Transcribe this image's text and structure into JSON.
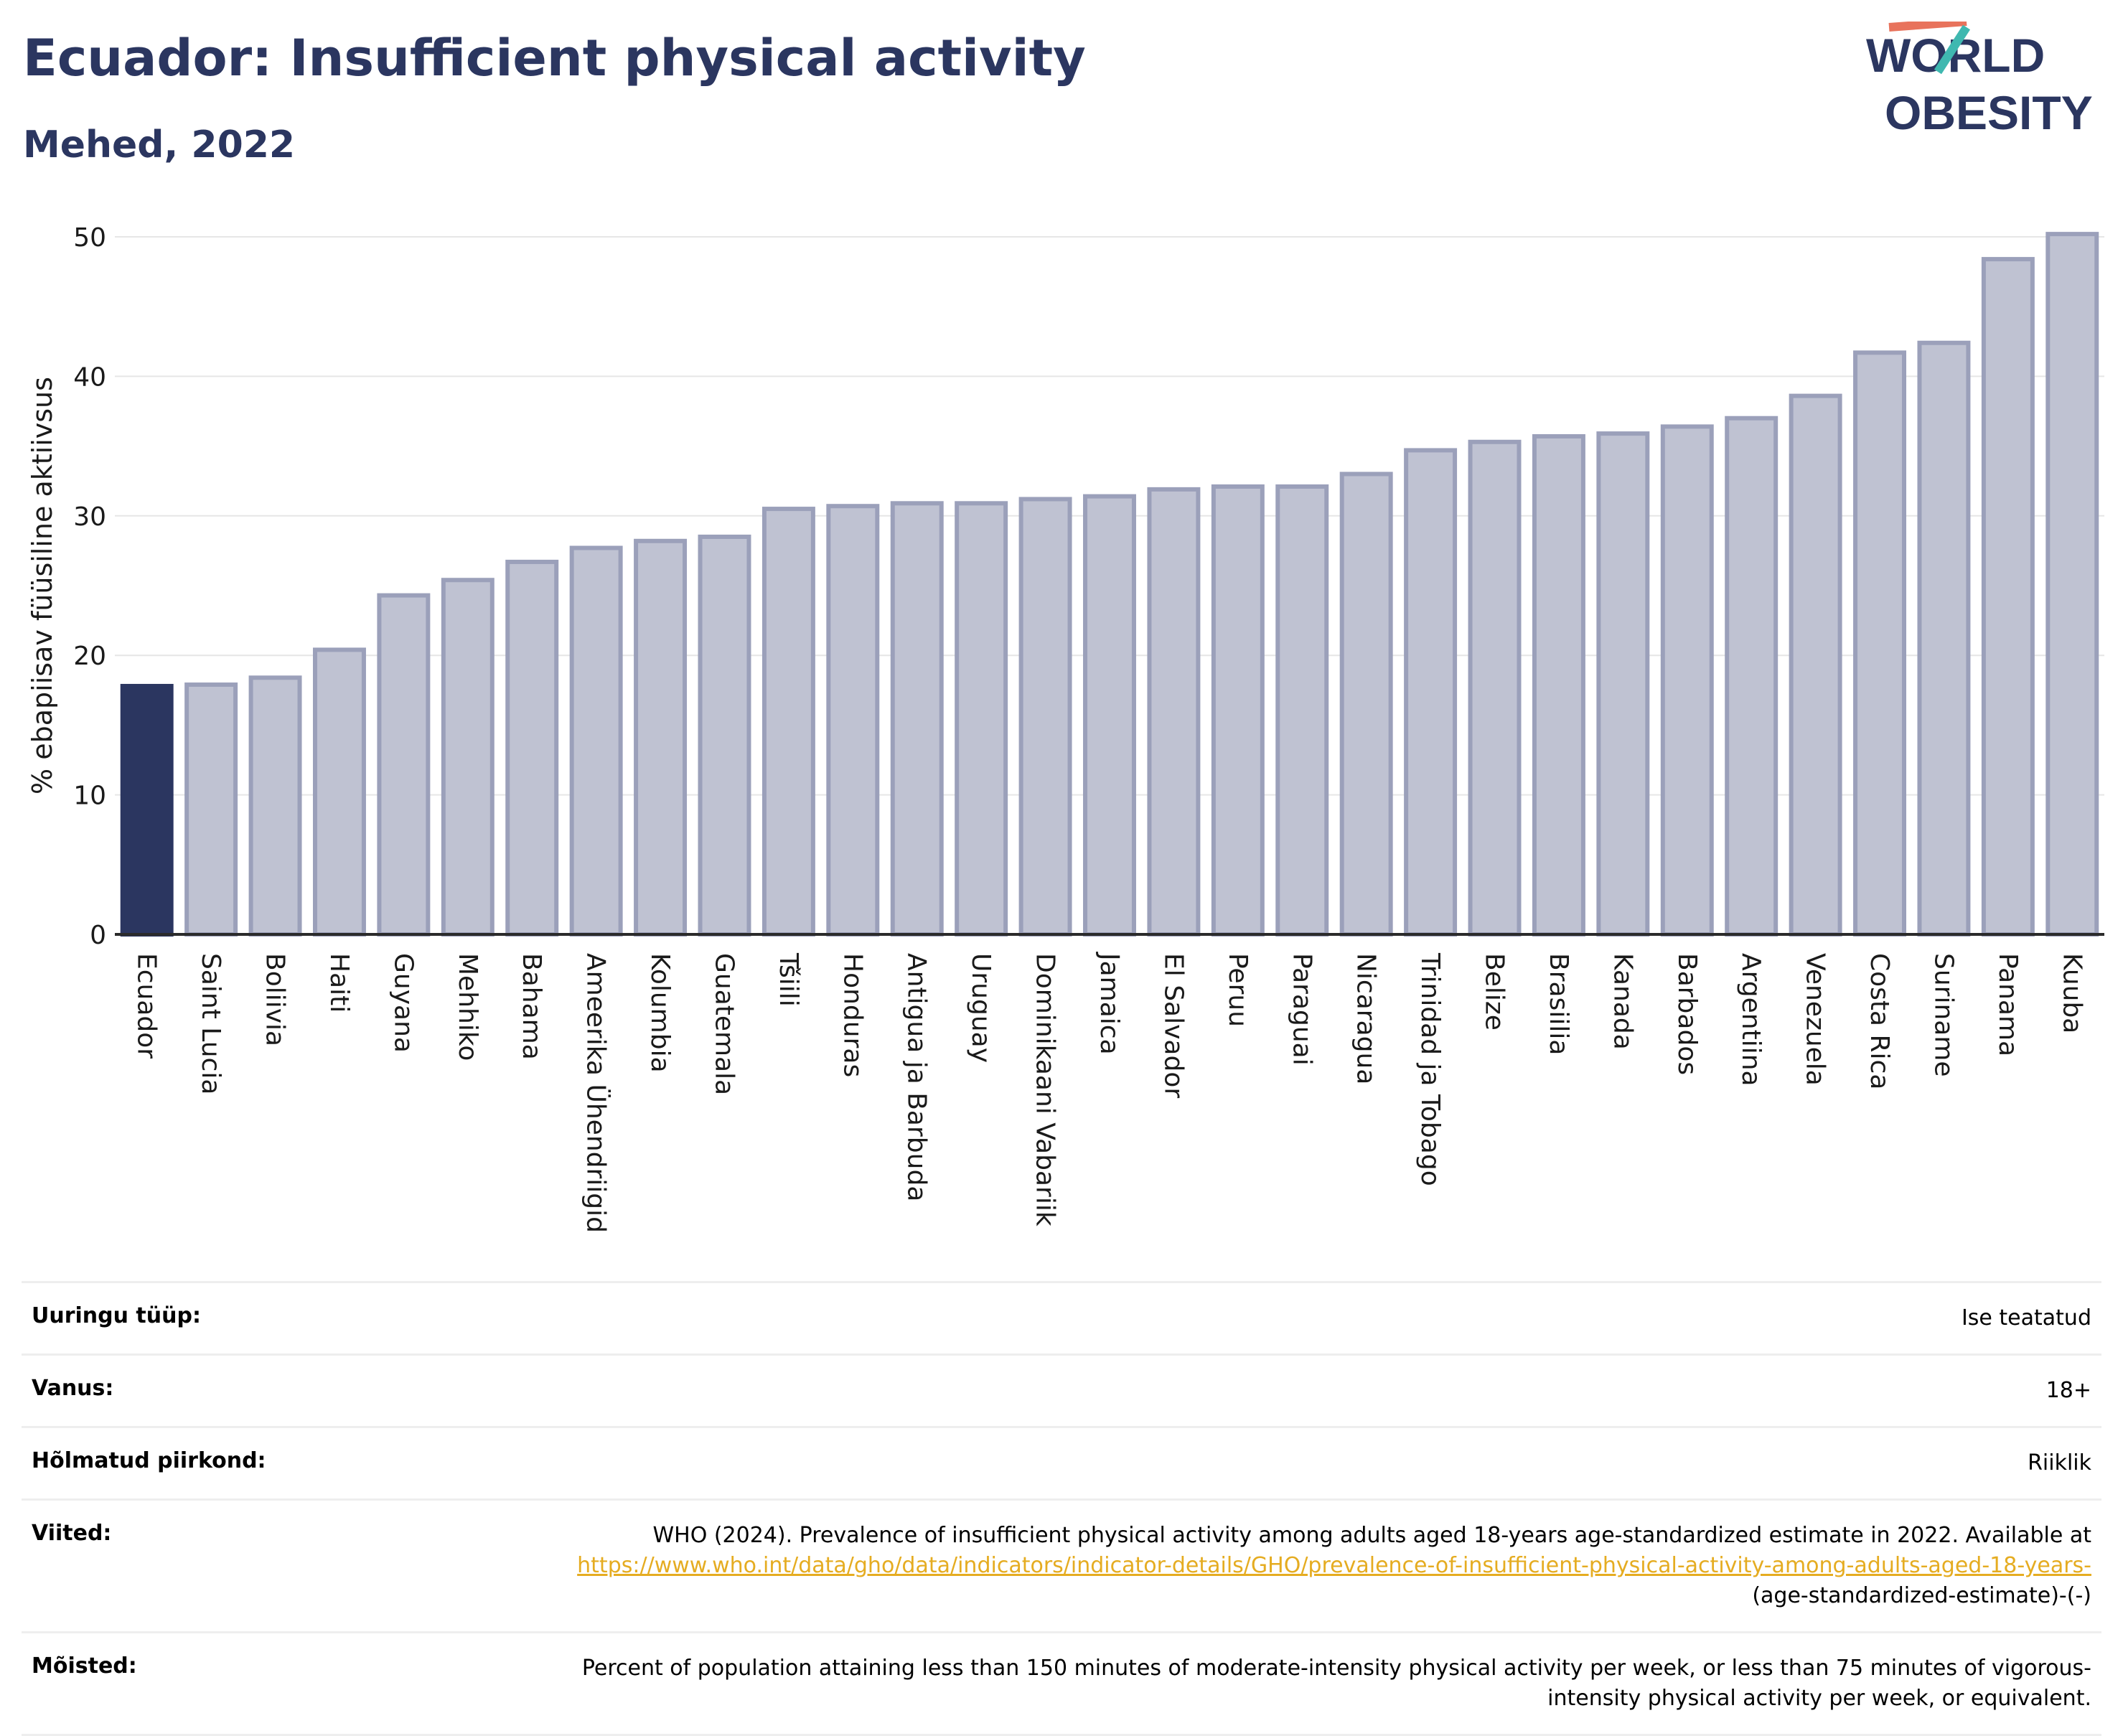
{
  "header": {
    "title": "Ecuador: Insufficient physical activity",
    "subtitle": "Mehed, 2022",
    "logo_line1": "WORLD",
    "logo_line2": "OBESITY"
  },
  "colors": {
    "highlight": "#2b3660",
    "bar": "#bfc2d2",
    "bar_border": "#9ba0ba",
    "title": "#2b3660",
    "link": "#e5ac21"
  },
  "chart_data": {
    "type": "bar",
    "ylabel": "% ebapiisav füüsiline aktiivsus",
    "ylim": [
      0,
      50
    ],
    "yticks": [
      0,
      10,
      20,
      30,
      40,
      50
    ],
    "grid": true,
    "highlight_category": "Ecuador",
    "categories": [
      "Ecuador",
      "Saint Lucia",
      "Boliivia",
      "Haiti",
      "Guyana",
      "Mehhiko",
      "Bahama",
      "Ameerika Ühendriigid",
      "Kolumbia",
      "Guatemala",
      "Tšiili",
      "Honduras",
      "Antigua ja Barbuda",
      "Uruguay",
      "Dominikaani Vabariik",
      "Jamaica",
      "El Salvador",
      "Peruu",
      "Paraguai",
      "Nicaragua",
      "Trinidad ja Tobago",
      "Belize",
      "Brasiilia",
      "Kanada",
      "Barbados",
      "Argentiina",
      "Venezuela",
      "Costa Rica",
      "Suriname",
      "Panama",
      "Kuuba"
    ],
    "values": [
      17.8,
      17.9,
      18.4,
      20.4,
      24.3,
      25.4,
      26.7,
      27.7,
      28.2,
      28.5,
      30.5,
      30.7,
      30.9,
      30.9,
      31.2,
      31.4,
      31.9,
      32.1,
      32.1,
      33.0,
      34.7,
      35.3,
      35.7,
      35.9,
      36.4,
      37.0,
      38.6,
      41.7,
      42.4,
      48.4,
      50.2
    ]
  },
  "info": {
    "survey_type_label": "Uuringu tüüp:",
    "survey_type_value": "Ise teatatud",
    "age_label": "Vanus:",
    "age_value": "18+",
    "region_label": "Hõlmatud piirkond:",
    "region_value": "Riiklik",
    "refs_label": "Viited:",
    "refs_text": "WHO (2024). Prevalence of insufficient physical activity among adults aged 18-years age-standardized estimate in 2022. Available at",
    "refs_link": "https://www.who.int/data/gho/data/indicators/indicator-details/GHO/prevalence-of-insufficient-physical-activity-among-adults-aged-18-years-",
    "refs_tail": "(age-standardized-estimate)-(-)",
    "defs_label": "Mõisted:",
    "defs_text": "Percent of population attaining less than 150 minutes of moderate-intensity physical activity per week, or less than 75 minutes of vigorous-intensity physical activity per week, or equivalent."
  }
}
